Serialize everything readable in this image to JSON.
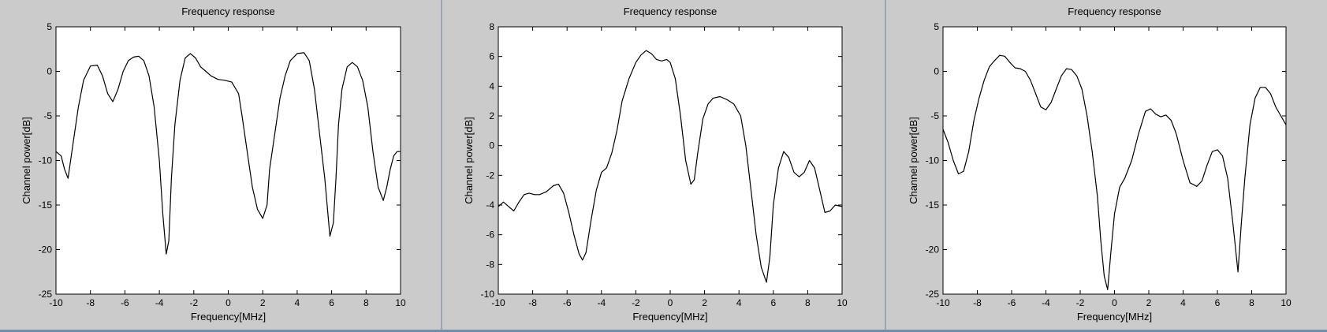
{
  "chart_data": [
    {
      "type": "line",
      "title": "Frequency response",
      "xlabel": "Frequency[MHz]",
      "ylabel": "Channel power[dB]",
      "xlim": [
        -10,
        10
      ],
      "ylim": [
        -25,
        5
      ],
      "xticks": [
        -10,
        -8,
        -6,
        -4,
        -2,
        0,
        2,
        4,
        6,
        8,
        10
      ],
      "yticks": [
        5,
        0,
        -5,
        -10,
        -15,
        -20,
        -25
      ],
      "grid": false,
      "series": [
        {
          "x": [
            -10,
            -9.7,
            -9.5,
            -9.3,
            -9.0,
            -8.7,
            -8.4,
            -8.0,
            -7.6,
            -7.3,
            -7.0,
            -6.7,
            -6.4,
            -6.1,
            -5.8,
            -5.5,
            -5.2,
            -4.9,
            -4.6,
            -4.3,
            -4.0,
            -3.8,
            -3.6,
            -3.45,
            -3.3,
            -3.1,
            -2.8,
            -2.5,
            -2.2,
            -1.9,
            -1.6,
            -1.3,
            -1.0,
            -0.6,
            -0.2,
            0.2,
            0.6,
            0.8,
            1.1,
            1.4,
            1.7,
            2.0,
            2.25,
            2.4,
            2.7,
            3.0,
            3.3,
            3.6,
            4.0,
            4.4,
            4.7,
            5.0,
            5.3,
            5.6,
            5.9,
            6.1,
            6.25,
            6.4,
            6.6,
            6.9,
            7.2,
            7.5,
            7.8,
            8.1,
            8.4,
            8.7,
            9.0,
            9.2,
            9.4,
            9.6,
            9.8,
            10
          ],
          "values": [
            -9,
            -9.5,
            -11,
            -12,
            -8,
            -4,
            -1,
            0.6,
            0.7,
            -0.5,
            -2.5,
            -3.4,
            -2,
            0,
            1.2,
            1.6,
            1.7,
            1.2,
            -0.5,
            -4,
            -10,
            -16,
            -20.5,
            -19,
            -12,
            -6,
            -1,
            1.5,
            2,
            1.5,
            0.5,
            0,
            -0.5,
            -0.9,
            -1,
            -1.2,
            -2.5,
            -5,
            -9,
            -13,
            -15.5,
            -16.5,
            -15,
            -11,
            -7,
            -3,
            -0.5,
            1.2,
            2,
            2.1,
            1.2,
            -2,
            -7,
            -12,
            -18.5,
            -17,
            -12,
            -6,
            -2,
            0.5,
            1,
            0.5,
            -1,
            -4,
            -9,
            -13,
            -14.5,
            -13,
            -11,
            -9.5,
            -9,
            -9
          ]
        }
      ]
    },
    {
      "type": "line",
      "title": "Frequency response",
      "xlabel": "Frequency[MHz]",
      "ylabel": "Channel power[dB]",
      "xlim": [
        -10,
        10
      ],
      "ylim": [
        -10,
        8
      ],
      "xticks": [
        -10,
        -8,
        -6,
        -4,
        -2,
        0,
        2,
        4,
        6,
        8,
        10
      ],
      "yticks": [
        8,
        6,
        4,
        2,
        0,
        -2,
        -4,
        -6,
        -8,
        -10
      ],
      "grid": false,
      "series": [
        {
          "x": [
            -10,
            -9.7,
            -9.4,
            -9.1,
            -8.8,
            -8.5,
            -8.2,
            -7.9,
            -7.6,
            -7.2,
            -6.8,
            -6.5,
            -6.2,
            -5.9,
            -5.6,
            -5.3,
            -5.1,
            -4.9,
            -4.6,
            -4.3,
            -4.0,
            -3.7,
            -3.4,
            -3.1,
            -2.8,
            -2.4,
            -2.0,
            -1.7,
            -1.4,
            -1.1,
            -0.8,
            -0.5,
            -0.2,
            0,
            0.3,
            0.6,
            0.9,
            1.2,
            1.4,
            1.6,
            1.9,
            2.2,
            2.5,
            2.9,
            3.3,
            3.7,
            4.1,
            4.4,
            4.7,
            5.0,
            5.3,
            5.6,
            5.8,
            6.0,
            6.3,
            6.6,
            6.9,
            7.2,
            7.5,
            7.8,
            8.1,
            8.4,
            8.7,
            9.0,
            9.3,
            9.6,
            10
          ],
          "values": [
            -4.1,
            -3.8,
            -4.1,
            -4.4,
            -3.8,
            -3.3,
            -3.2,
            -3.3,
            -3.3,
            -3.1,
            -2.7,
            -2.6,
            -3.2,
            -4.5,
            -6,
            -7.3,
            -7.7,
            -7.2,
            -5,
            -3,
            -1.8,
            -1.5,
            -0.5,
            1,
            3,
            4.5,
            5.6,
            6.1,
            6.4,
            6.2,
            5.8,
            5.7,
            5.8,
            5.6,
            4.5,
            2,
            -1,
            -2.6,
            -2.3,
            -0.5,
            1.8,
            2.8,
            3.2,
            3.3,
            3.1,
            2.8,
            2,
            0,
            -3,
            -6,
            -8.2,
            -9.2,
            -7.5,
            -4,
            -1.5,
            -0.4,
            -0.8,
            -1.8,
            -2.1,
            -1.8,
            -1,
            -1.5,
            -3,
            -4.5,
            -4.4,
            -4,
            -4.1
          ]
        }
      ]
    },
    {
      "type": "line",
      "title": "Frequency response",
      "xlabel": "Frequency[MHz]",
      "ylabel": "Channel power[dB]",
      "xlim": [
        -10,
        10
      ],
      "ylim": [
        -25,
        5
      ],
      "xticks": [
        -10,
        -8,
        -6,
        -4,
        -2,
        0,
        2,
        4,
        6,
        8,
        10
      ],
      "yticks": [
        5,
        0,
        -5,
        -10,
        -15,
        -20,
        -25
      ],
      "grid": false,
      "series": [
        {
          "x": [
            -10,
            -9.7,
            -9.4,
            -9.1,
            -8.8,
            -8.5,
            -8.2,
            -7.9,
            -7.6,
            -7.3,
            -7.0,
            -6.7,
            -6.4,
            -6.1,
            -5.8,
            -5.5,
            -5.2,
            -4.9,
            -4.6,
            -4.3,
            -4.0,
            -3.7,
            -3.4,
            -3.1,
            -2.8,
            -2.5,
            -2.2,
            -1.9,
            -1.6,
            -1.3,
            -1.0,
            -0.8,
            -0.6,
            -0.4,
            -0.2,
            0,
            0.3,
            0.6,
            1.0,
            1.4,
            1.8,
            2.1,
            2.4,
            2.7,
            3.0,
            3.3,
            3.6,
            4.0,
            4.4,
            4.8,
            5.1,
            5.4,
            5.7,
            6.0,
            6.3,
            6.6,
            6.9,
            7.2,
            7.4,
            7.6,
            7.9,
            8.2,
            8.5,
            8.8,
            9.1,
            9.4,
            9.7,
            10
          ],
          "values": [
            -6.5,
            -8,
            -10,
            -11.5,
            -11.2,
            -9,
            -5.5,
            -3,
            -1,
            0.5,
            1.2,
            1.8,
            1.7,
            1,
            0.4,
            0.3,
            0,
            -1,
            -2.5,
            -4,
            -4.3,
            -3.5,
            -2,
            -0.5,
            0.3,
            0.2,
            -0.5,
            -2,
            -5,
            -9,
            -14,
            -19,
            -23,
            -24.5,
            -20,
            -16,
            -13,
            -12,
            -10,
            -7,
            -4.5,
            -4.2,
            -4.8,
            -5.1,
            -4.9,
            -5.5,
            -7,
            -10,
            -12.5,
            -12.9,
            -12.3,
            -10.5,
            -9,
            -8.8,
            -9.5,
            -12,
            -17,
            -22.5,
            -17,
            -12,
            -6,
            -3,
            -1.8,
            -1.8,
            -2.5,
            -4,
            -5,
            -6
          ]
        }
      ]
    }
  ]
}
